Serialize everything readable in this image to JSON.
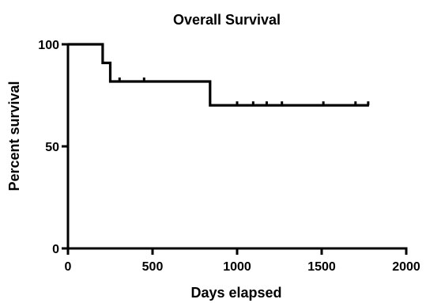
{
  "chart_data": {
    "type": "line",
    "subtype": "kaplan-meier-step",
    "title": "Overall Survival",
    "xlabel": "Days elapsed",
    "ylabel": "Percent survival",
    "xlim": [
      0,
      2000
    ],
    "ylim": [
      0,
      100
    ],
    "x_ticks": [
      0,
      500,
      1000,
      1500,
      2000
    ],
    "y_ticks": [
      0,
      50,
      100
    ],
    "grid": false,
    "legend": "none",
    "line_color": "#000000",
    "series": [
      {
        "steps": [
          {
            "x": 0,
            "y": 100
          },
          {
            "x": 205,
            "y": 100
          },
          {
            "x": 205,
            "y": 90.9
          },
          {
            "x": 250,
            "y": 90.9
          },
          {
            "x": 250,
            "y": 81.8
          },
          {
            "x": 840,
            "y": 81.8
          },
          {
            "x": 840,
            "y": 70.1
          },
          {
            "x": 1780,
            "y": 70.1
          }
        ],
        "censored": [
          {
            "x": 305,
            "y": 81.8
          },
          {
            "x": 450,
            "y": 81.8
          },
          {
            "x": 1000,
            "y": 70.1
          },
          {
            "x": 1095,
            "y": 70.1
          },
          {
            "x": 1175,
            "y": 70.1
          },
          {
            "x": 1265,
            "y": 70.1
          },
          {
            "x": 1510,
            "y": 70.1
          },
          {
            "x": 1700,
            "y": 70.1
          },
          {
            "x": 1775,
            "y": 70.1
          }
        ]
      }
    ]
  }
}
